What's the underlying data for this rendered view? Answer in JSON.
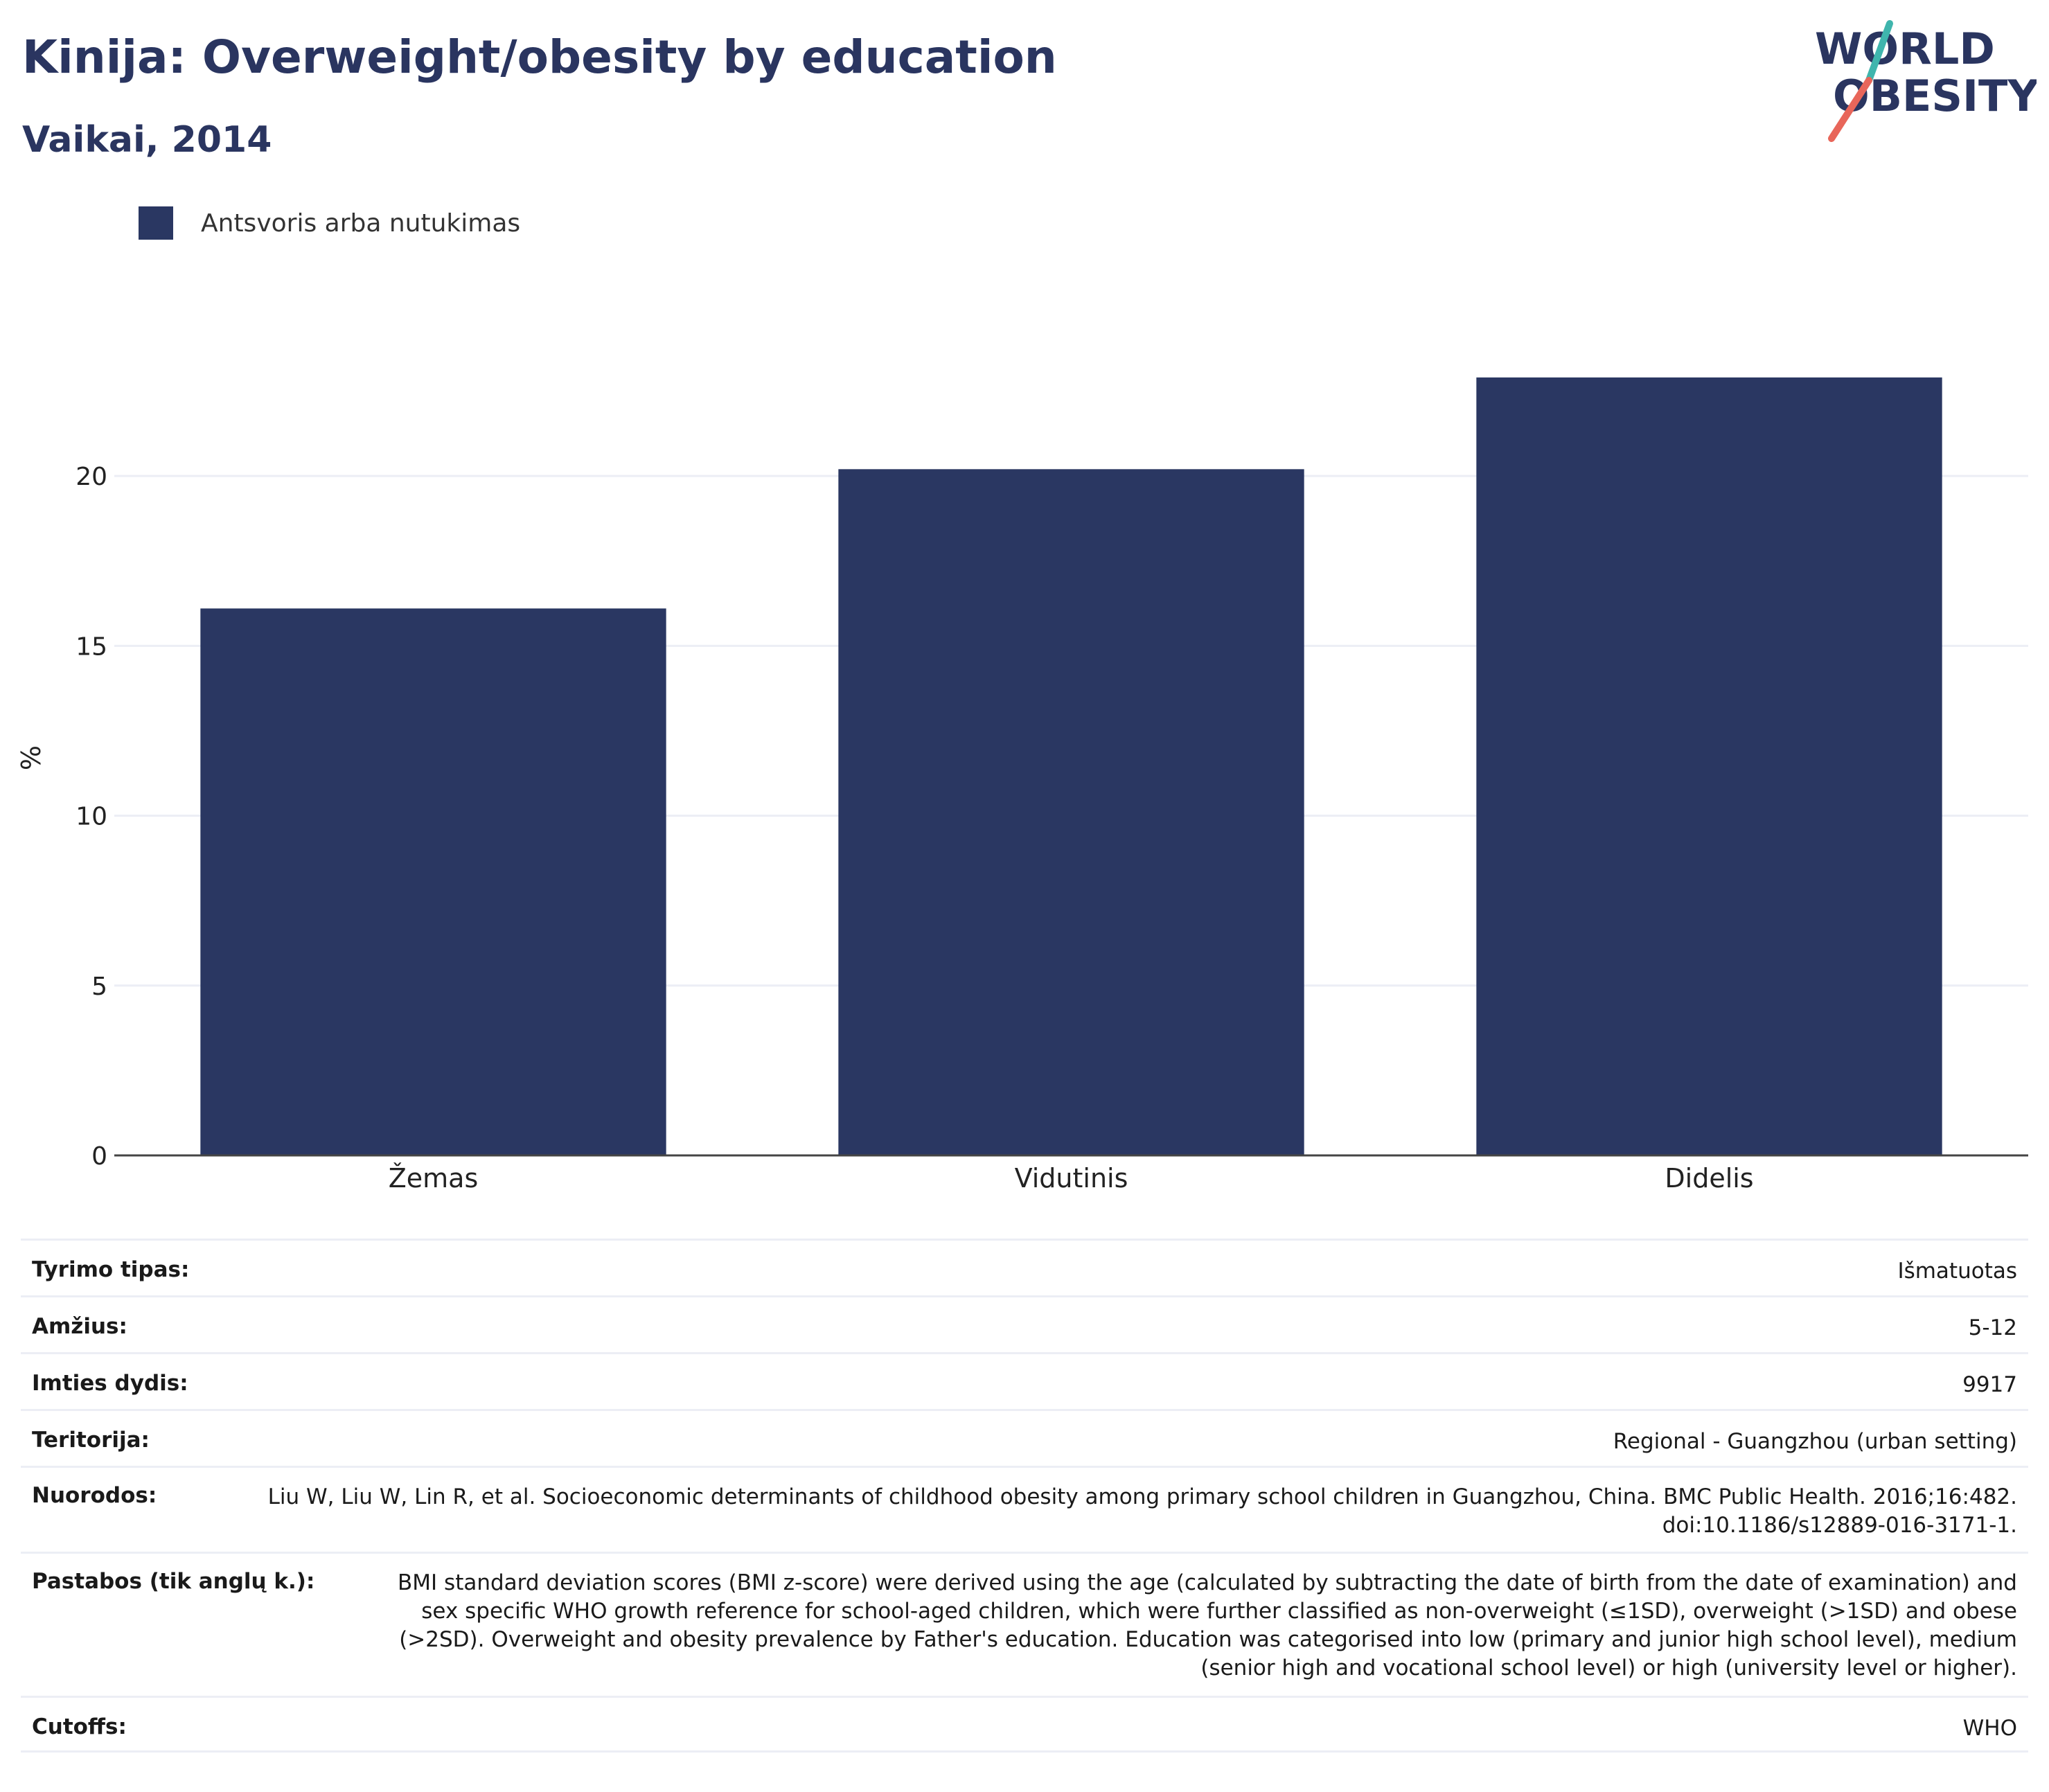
{
  "header": {
    "title": "Kinija: Overweight/obesity by education",
    "subtitle": "Vaikai, 2014"
  },
  "logo": {
    "line1": "WORLD",
    "line2": "OBESITY",
    "text_color": "#2a3560",
    "accent_teal": "#3fb5ad",
    "accent_red": "#e8665a"
  },
  "legend": {
    "items": [
      {
        "label": "Antsvoris arba nutukimas",
        "color": "#2a3762"
      }
    ]
  },
  "chart_data": {
    "type": "bar",
    "categories": [
      "Žemas",
      "Vidutinis",
      "Didelis"
    ],
    "series": [
      {
        "name": "Antsvoris arba nutukimas",
        "values": [
          16.1,
          20.2,
          22.9
        ],
        "color": "#2a3762"
      }
    ],
    "title": "Kinija: Overweight/obesity by education",
    "subtitle": "Vaikai, 2014",
    "xlabel": "",
    "ylabel": "%",
    "ylim": [
      0,
      23
    ],
    "yticks": [
      0,
      5,
      10,
      15,
      20
    ],
    "grid": true,
    "legend_position": "top-left"
  },
  "info": {
    "rows": [
      {
        "key": "Tyrimo tipas:",
        "value": "Išmatuotas"
      },
      {
        "key": "Amžius:",
        "value": "5-12"
      },
      {
        "key": "Imties dydis:",
        "value": "9917"
      },
      {
        "key": "Teritorija:",
        "value": "Regional - Guangzhou (urban setting)"
      },
      {
        "key": "Nuorodos:",
        "value": "Liu W, Liu W, Lin R, et al. Socioeconomic determinants of childhood obesity among primary school children in Guangzhou, China. BMC Public Health. 2016;16:482. doi:10.1186/s12889-016-3171-1."
      },
      {
        "key": "Pastabos (tik anglų k.):",
        "value": "BMI standard deviation scores (BMI z-score) were derived using the age (calculated by subtracting the date of birth from the date of examination) and sex specific WHO growth reference for school-aged children, which were further classified as non-overweight (≤1SD), overweight (>1SD) and obese (>2SD). Overweight and obesity prevalence by Father's education. Education was categorised into low (primary and junior high school level), medium (senior high and vocational school level) or high (university level or higher)."
      },
      {
        "key": "Cutoffs:",
        "value": "WHO"
      }
    ]
  }
}
